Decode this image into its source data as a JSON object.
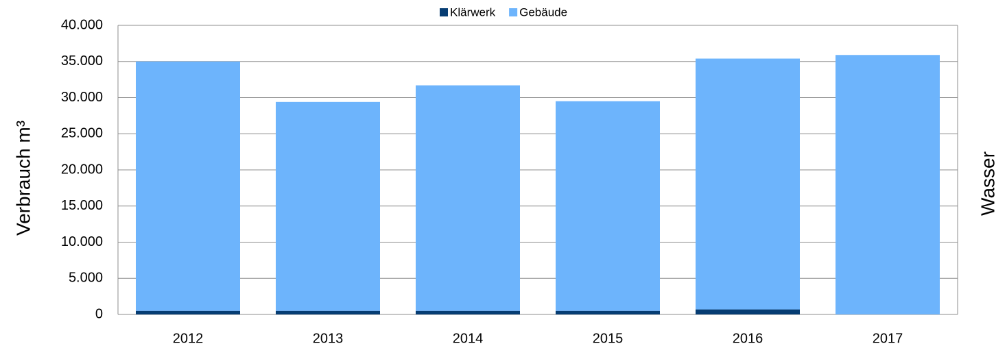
{
  "chart_data": {
    "type": "stacked_bar",
    "title": "Wasser",
    "y_label": "Verbrauch m³",
    "categories": [
      "2012",
      "2013",
      "2014",
      "2015",
      "2016",
      "2017"
    ],
    "series": [
      {
        "name": "Klärwerk",
        "color": "#063d73",
        "values": [
          500,
          500,
          500,
          500,
          700,
          0
        ]
      },
      {
        "name": "Gebäude",
        "color": "#6db4fc",
        "values": [
          34500,
          28900,
          31200,
          29000,
          34700,
          35900
        ]
      }
    ],
    "ylim": [
      0,
      40000
    ],
    "yticks": [
      0,
      {
        "value": 5000,
        "label": "5.000"
      },
      {
        "value": 10000,
        "label": "10.000"
      },
      {
        "value": 15000,
        "label": "15.000"
      },
      {
        "value": 20000,
        "label": "20.000"
      },
      {
        "value": 25000,
        "label": "25.000"
      },
      {
        "value": 30000,
        "label": "30.000"
      },
      {
        "value": 35000,
        "label": "35.000"
      },
      {
        "value": 40000,
        "label": "40.000"
      }
    ],
    "grid": true,
    "legend": "top"
  }
}
